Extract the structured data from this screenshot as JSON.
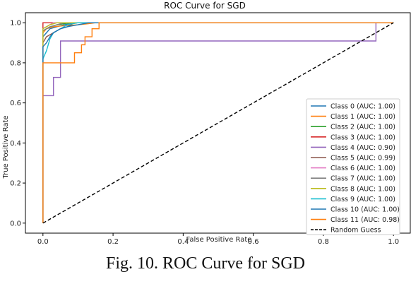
{
  "caption": "Fig. 10. ROC Curve for SGD",
  "chart_data": {
    "type": "line",
    "title": "ROC Curve for SGD",
    "xlabel": "False Positive Rate",
    "ylabel": "True Positive Rate",
    "xlim": [
      -0.05,
      1.05
    ],
    "ylim": [
      -0.05,
      1.05
    ],
    "xticks": [
      0.0,
      0.2,
      0.4,
      0.6,
      0.8,
      1.0
    ],
    "yticks": [
      0.0,
      0.2,
      0.4,
      0.6,
      0.8,
      1.0
    ],
    "tick_labels_x": [
      "0.0",
      "0.2",
      "0.4",
      "0.6",
      "0.8",
      "1.0"
    ],
    "tick_labels_y": [
      "0.0",
      "0.2",
      "0.4",
      "0.6",
      "0.8",
      "1.0"
    ],
    "grid": false,
    "legend_position": "lower-right",
    "series": [
      {
        "name": "Class 0 (AUC: 1.00)",
        "color": "#1f77b4",
        "x": [
          0,
          0,
          0.01,
          0.02,
          0.04,
          0.06,
          0.08,
          0.1,
          1.0
        ],
        "y": [
          0,
          0.93,
          0.95,
          0.97,
          0.98,
          0.99,
          0.995,
          1.0,
          1.0
        ]
      },
      {
        "name": "Class 1 (AUC: 1.00)",
        "color": "#ff7f0e",
        "x": [
          0,
          0,
          0.01,
          0.03,
          0.06,
          0.1,
          0.13,
          0.15,
          1.0
        ],
        "y": [
          0,
          0.95,
          0.97,
          0.98,
          0.985,
          0.99,
          0.995,
          1.0,
          1.0
        ]
      },
      {
        "name": "Class 2 (AUC: 1.00)",
        "color": "#2ca02c",
        "x": [
          0,
          0,
          0.01,
          0.02,
          0.04,
          0.06,
          0.08,
          1.0
        ],
        "y": [
          0,
          0.96,
          0.97,
          0.98,
          0.99,
          0.995,
          1.0,
          1.0
        ]
      },
      {
        "name": "Class 3 (AUC: 1.00)",
        "color": "#d62728",
        "x": [
          0,
          0,
          1.0
        ],
        "y": [
          0,
          1.0,
          1.0
        ]
      },
      {
        "name": "Class 4 (AUC: 0.90)",
        "color": "#9467bd",
        "x": [
          0,
          0,
          0.005,
          0.005,
          0.03,
          0.03,
          0.05,
          0.05,
          0.95,
          0.95,
          1.0
        ],
        "y": [
          0,
          0.636,
          0.636,
          0.636,
          0.636,
          0.727,
          0.727,
          0.909,
          0.909,
          1.0,
          1.0
        ]
      },
      {
        "name": "Class 5 (AUC: 0.99)",
        "color": "#8c564b",
        "x": [
          0,
          0,
          0.01,
          0.03,
          0.05,
          0.07,
          0.09,
          1.0
        ],
        "y": [
          0,
          0.9,
          0.93,
          0.95,
          0.97,
          0.98,
          1.0,
          1.0
        ]
      },
      {
        "name": "Class 6 (AUC: 1.00)",
        "color": "#e377c2",
        "x": [
          0,
          0,
          0.01,
          0.02,
          0.03,
          1.0
        ],
        "y": [
          0,
          0.97,
          0.98,
          0.99,
          1.0,
          1.0
        ]
      },
      {
        "name": "Class 7 (AUC: 1.00)",
        "color": "#7f7f7f",
        "x": [
          0,
          0,
          0.01,
          0.02,
          0.04,
          0.06,
          1.0
        ],
        "y": [
          0,
          0.96,
          0.97,
          0.98,
          0.99,
          1.0,
          1.0
        ]
      },
      {
        "name": "Class 8 (AUC: 1.00)",
        "color": "#bcbd22",
        "x": [
          0,
          0,
          0.01,
          0.02,
          0.04,
          1.0
        ],
        "y": [
          0,
          0.97,
          0.98,
          0.99,
          1.0,
          1.0
        ]
      },
      {
        "name": "Class 9 (AUC: 1.00)",
        "color": "#17becf",
        "x": [
          0,
          0,
          0.01,
          0.02,
          0.03,
          0.05,
          0.07,
          0.1,
          1.0
        ],
        "y": [
          0,
          0.82,
          0.86,
          0.92,
          0.95,
          0.97,
          0.99,
          1.0,
          1.0
        ]
      },
      {
        "name": "Class 10 (AUC: 1.00)",
        "color": "#1f77b4",
        "x": [
          0,
          0,
          0.01,
          0.02,
          0.03,
          0.05,
          0.07,
          0.1,
          0.13,
          1.0
        ],
        "y": [
          0,
          0.88,
          0.9,
          0.93,
          0.95,
          0.97,
          0.98,
          0.99,
          1.0,
          1.0
        ]
      },
      {
        "name": "Class 11 (AUC: 0.98)",
        "color": "#ff7f0e",
        "x": [
          0,
          0,
          0.01,
          0.01,
          0.09,
          0.09,
          0.11,
          0.11,
          0.12,
          0.12,
          0.14,
          0.14,
          0.16,
          0.16,
          1.0
        ],
        "y": [
          0,
          0.8,
          0.8,
          0.8,
          0.8,
          0.85,
          0.85,
          0.89,
          0.89,
          0.93,
          0.93,
          0.97,
          0.97,
          1.0,
          1.0
        ]
      },
      {
        "name": "Random Guess",
        "color": "#000000",
        "dashed": true,
        "x": [
          0,
          1
        ],
        "y": [
          0,
          1
        ]
      }
    ]
  }
}
